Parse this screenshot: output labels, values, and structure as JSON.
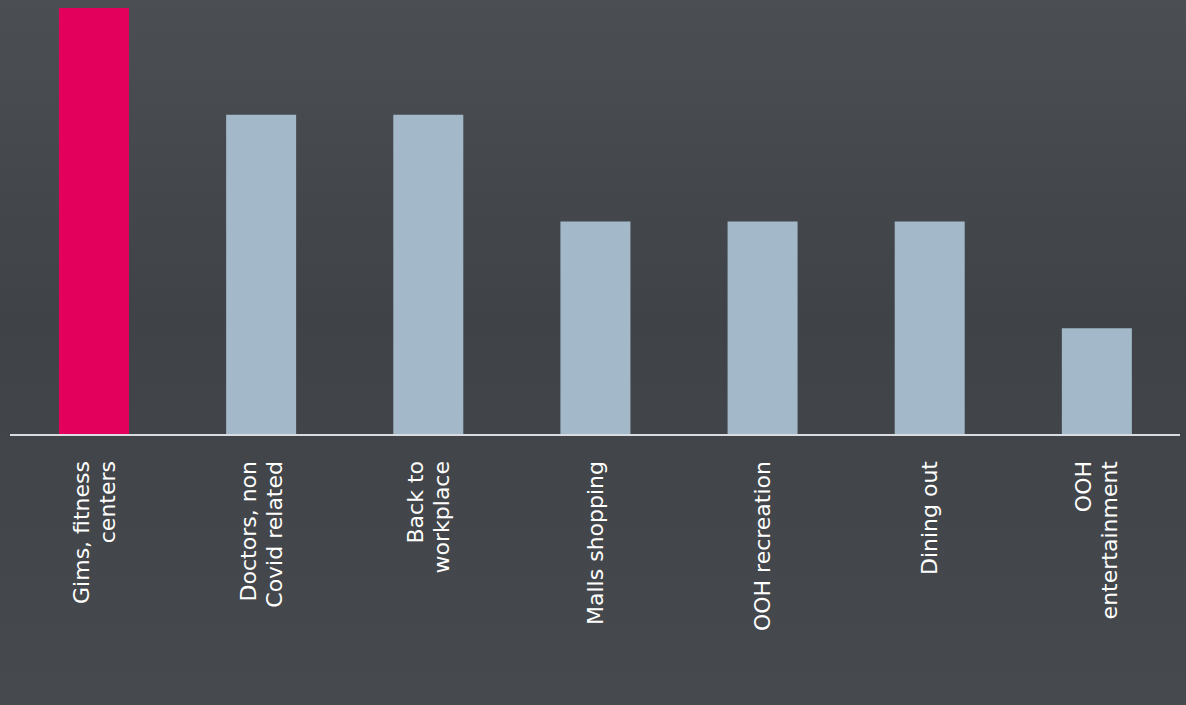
{
  "chart_data": {
    "type": "bar",
    "categories": [
      "Gims, fitness centers",
      "Doctors, non Covid related",
      "Back to workplace",
      "Malls shopping",
      "OOH recreation",
      "Dining out",
      "OOH entertainment"
    ],
    "values": [
      4,
      3,
      3,
      2,
      2,
      2,
      1
    ],
    "colors": [
      "#e2005c",
      "#a3b9c9",
      "#a3b9c9",
      "#a3b9c9",
      "#a3b9c9",
      "#a3b9c9",
      "#a3b9c9"
    ],
    "ylim": [
      0,
      4
    ],
    "grid": false,
    "tick_labels": "x"
  }
}
